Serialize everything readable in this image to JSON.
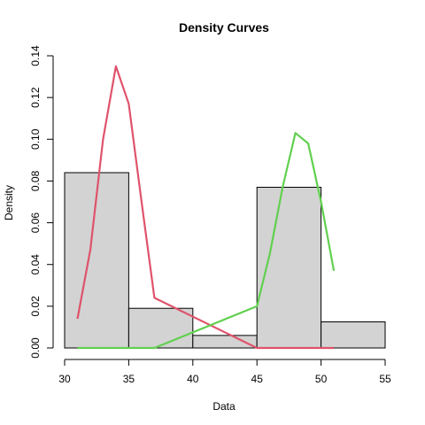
{
  "chart_data": {
    "type": "bar",
    "title": "Density Curves",
    "xlabel": "Data",
    "ylabel": "Density",
    "xlim": [
      30,
      55
    ],
    "ylim": [
      0,
      0.14
    ],
    "x_ticks": [
      "30",
      "35",
      "40",
      "45",
      "50",
      "55"
    ],
    "y_ticks": [
      "0.00",
      "0.02",
      "0.04",
      "0.06",
      "0.08",
      "0.10",
      "0.12",
      "0.14"
    ],
    "histogram": {
      "bins": [
        {
          "start": 30,
          "end": 35,
          "density": 0.084
        },
        {
          "start": 35,
          "end": 40,
          "density": 0.019
        },
        {
          "start": 40,
          "end": 45,
          "density": 0.006
        },
        {
          "start": 45,
          "end": 50,
          "density": 0.077
        },
        {
          "start": 50,
          "end": 55,
          "density": 0.0125
        }
      ],
      "fill": "#d3d3d3",
      "stroke": "#000000"
    },
    "series": [
      {
        "type": "line",
        "color": "#df536b",
        "points": [
          [
            31,
            0.014
          ],
          [
            32,
            0.047
          ],
          [
            33,
            0.1
          ],
          [
            34,
            0.135
          ],
          [
            35,
            0.117
          ],
          [
            36,
            0.07
          ],
          [
            37,
            0.024
          ],
          [
            45,
            0.0
          ],
          [
            51,
            0.0
          ]
        ]
      },
      {
        "type": "line",
        "color": "#61d04f",
        "points": [
          [
            31,
            0.0
          ],
          [
            37,
            0.0
          ],
          [
            45,
            0.02
          ],
          [
            46,
            0.045
          ],
          [
            47,
            0.077
          ],
          [
            48,
            0.103
          ],
          [
            49,
            0.098
          ],
          [
            50,
            0.07
          ],
          [
            51,
            0.037
          ]
        ]
      }
    ]
  }
}
